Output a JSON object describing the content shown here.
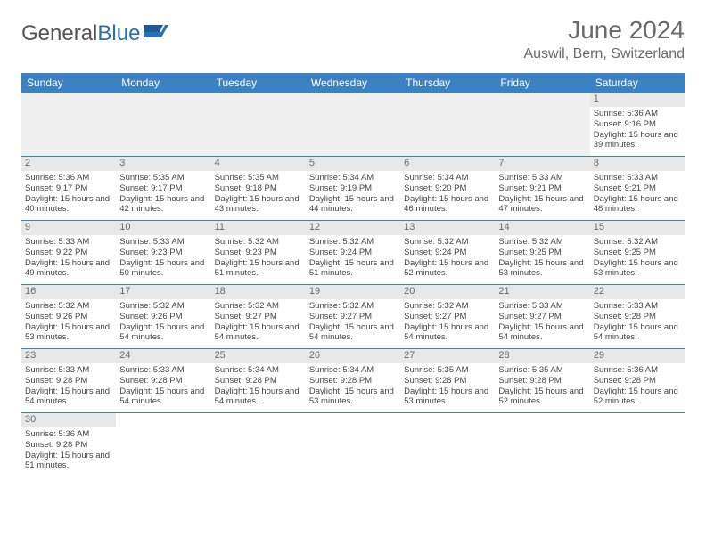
{
  "logo": {
    "part1": "General",
    "part2": "Blue"
  },
  "header": {
    "month": "June 2024",
    "location": "Auswil, Bern, Switzerland"
  },
  "colors": {
    "header_bg": "#3b82c4",
    "grid_border": "#3b82c4",
    "daynum_bg": "#e8e8e8",
    "text": "#464646"
  },
  "day_names": [
    "Sunday",
    "Monday",
    "Tuesday",
    "Wednesday",
    "Thursday",
    "Friday",
    "Saturday"
  ],
  "weeks": [
    [
      null,
      null,
      null,
      null,
      null,
      null,
      {
        "n": "1",
        "sr": "Sunrise: 5:36 AM",
        "ss": "Sunset: 9:16 PM",
        "dl": "Daylight: 15 hours and 39 minutes."
      }
    ],
    [
      {
        "n": "2",
        "sr": "Sunrise: 5:36 AM",
        "ss": "Sunset: 9:17 PM",
        "dl": "Daylight: 15 hours and 40 minutes."
      },
      {
        "n": "3",
        "sr": "Sunrise: 5:35 AM",
        "ss": "Sunset: 9:17 PM",
        "dl": "Daylight: 15 hours and 42 minutes."
      },
      {
        "n": "4",
        "sr": "Sunrise: 5:35 AM",
        "ss": "Sunset: 9:18 PM",
        "dl": "Daylight: 15 hours and 43 minutes."
      },
      {
        "n": "5",
        "sr": "Sunrise: 5:34 AM",
        "ss": "Sunset: 9:19 PM",
        "dl": "Daylight: 15 hours and 44 minutes."
      },
      {
        "n": "6",
        "sr": "Sunrise: 5:34 AM",
        "ss": "Sunset: 9:20 PM",
        "dl": "Daylight: 15 hours and 46 minutes."
      },
      {
        "n": "7",
        "sr": "Sunrise: 5:33 AM",
        "ss": "Sunset: 9:21 PM",
        "dl": "Daylight: 15 hours and 47 minutes."
      },
      {
        "n": "8",
        "sr": "Sunrise: 5:33 AM",
        "ss": "Sunset: 9:21 PM",
        "dl": "Daylight: 15 hours and 48 minutes."
      }
    ],
    [
      {
        "n": "9",
        "sr": "Sunrise: 5:33 AM",
        "ss": "Sunset: 9:22 PM",
        "dl": "Daylight: 15 hours and 49 minutes."
      },
      {
        "n": "10",
        "sr": "Sunrise: 5:33 AM",
        "ss": "Sunset: 9:23 PM",
        "dl": "Daylight: 15 hours and 50 minutes."
      },
      {
        "n": "11",
        "sr": "Sunrise: 5:32 AM",
        "ss": "Sunset: 9:23 PM",
        "dl": "Daylight: 15 hours and 51 minutes."
      },
      {
        "n": "12",
        "sr": "Sunrise: 5:32 AM",
        "ss": "Sunset: 9:24 PM",
        "dl": "Daylight: 15 hours and 51 minutes."
      },
      {
        "n": "13",
        "sr": "Sunrise: 5:32 AM",
        "ss": "Sunset: 9:24 PM",
        "dl": "Daylight: 15 hours and 52 minutes."
      },
      {
        "n": "14",
        "sr": "Sunrise: 5:32 AM",
        "ss": "Sunset: 9:25 PM",
        "dl": "Daylight: 15 hours and 53 minutes."
      },
      {
        "n": "15",
        "sr": "Sunrise: 5:32 AM",
        "ss": "Sunset: 9:25 PM",
        "dl": "Daylight: 15 hours and 53 minutes."
      }
    ],
    [
      {
        "n": "16",
        "sr": "Sunrise: 5:32 AM",
        "ss": "Sunset: 9:26 PM",
        "dl": "Daylight: 15 hours and 53 minutes."
      },
      {
        "n": "17",
        "sr": "Sunrise: 5:32 AM",
        "ss": "Sunset: 9:26 PM",
        "dl": "Daylight: 15 hours and 54 minutes."
      },
      {
        "n": "18",
        "sr": "Sunrise: 5:32 AM",
        "ss": "Sunset: 9:27 PM",
        "dl": "Daylight: 15 hours and 54 minutes."
      },
      {
        "n": "19",
        "sr": "Sunrise: 5:32 AM",
        "ss": "Sunset: 9:27 PM",
        "dl": "Daylight: 15 hours and 54 minutes."
      },
      {
        "n": "20",
        "sr": "Sunrise: 5:32 AM",
        "ss": "Sunset: 9:27 PM",
        "dl": "Daylight: 15 hours and 54 minutes."
      },
      {
        "n": "21",
        "sr": "Sunrise: 5:33 AM",
        "ss": "Sunset: 9:27 PM",
        "dl": "Daylight: 15 hours and 54 minutes."
      },
      {
        "n": "22",
        "sr": "Sunrise: 5:33 AM",
        "ss": "Sunset: 9:28 PM",
        "dl": "Daylight: 15 hours and 54 minutes."
      }
    ],
    [
      {
        "n": "23",
        "sr": "Sunrise: 5:33 AM",
        "ss": "Sunset: 9:28 PM",
        "dl": "Daylight: 15 hours and 54 minutes."
      },
      {
        "n": "24",
        "sr": "Sunrise: 5:33 AM",
        "ss": "Sunset: 9:28 PM",
        "dl": "Daylight: 15 hours and 54 minutes."
      },
      {
        "n": "25",
        "sr": "Sunrise: 5:34 AM",
        "ss": "Sunset: 9:28 PM",
        "dl": "Daylight: 15 hours and 54 minutes."
      },
      {
        "n": "26",
        "sr": "Sunrise: 5:34 AM",
        "ss": "Sunset: 9:28 PM",
        "dl": "Daylight: 15 hours and 53 minutes."
      },
      {
        "n": "27",
        "sr": "Sunrise: 5:35 AM",
        "ss": "Sunset: 9:28 PM",
        "dl": "Daylight: 15 hours and 53 minutes."
      },
      {
        "n": "28",
        "sr": "Sunrise: 5:35 AM",
        "ss": "Sunset: 9:28 PM",
        "dl": "Daylight: 15 hours and 52 minutes."
      },
      {
        "n": "29",
        "sr": "Sunrise: 5:36 AM",
        "ss": "Sunset: 9:28 PM",
        "dl": "Daylight: 15 hours and 52 minutes."
      }
    ],
    [
      {
        "n": "30",
        "sr": "Sunrise: 5:36 AM",
        "ss": "Sunset: 9:28 PM",
        "dl": "Daylight: 15 hours and 51 minutes."
      },
      null,
      null,
      null,
      null,
      null,
      null
    ]
  ]
}
